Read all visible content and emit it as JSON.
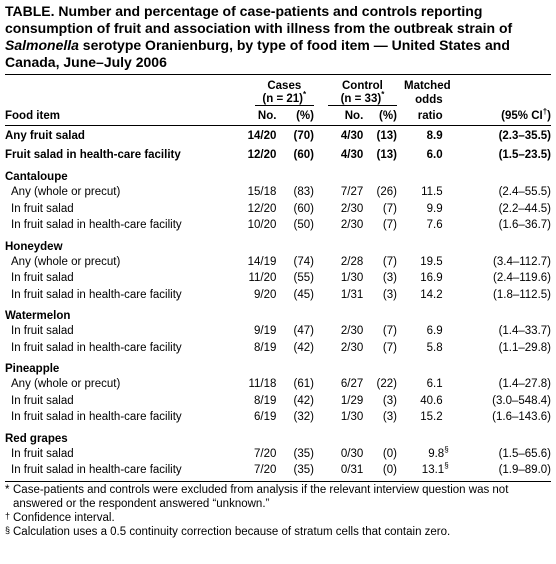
{
  "title": {
    "bold_prefix": "TABLE.",
    "text_1": " Number and percentage of case-patients and controls reporting consumption of fruit and association with illness from the outbreak strain of ",
    "italic": "Salmonella",
    "text_2": " serotype Oranienburg, by type of food item — United States and Canada, June–July 2006"
  },
  "header": {
    "cases_label": "Cases",
    "cases_n": "(n = 21)",
    "cases_mark": "*",
    "control_label": "Control",
    "control_n": "(n = 33)",
    "control_mark": "*",
    "matched_1": "Matched",
    "matched_2": "odds",
    "food_item": "Food item",
    "no_1": "No.",
    "pct_1": "(%)",
    "no_2": "No.",
    "pct_2": "(%)",
    "ratio": "ratio",
    "ci_prefix": "(95% CI",
    "ci_mark": "†",
    "ci_suffix": ")"
  },
  "rows": [
    {
      "kind": "bold",
      "label": "Any fruit salad",
      "cases_no": "14/20",
      "cases_pct": "(70)",
      "ctrl_no": "4/30",
      "ctrl_pct": "(13)",
      "or": "8.9",
      "or_mark": "",
      "ci": "(2.3–35.5)"
    },
    {
      "kind": "bold",
      "label": "Fruit salad in health-care facility",
      "cases_no": "12/20",
      "cases_pct": "(60)",
      "ctrl_no": "4/30",
      "ctrl_pct": "(13)",
      "or": "6.0",
      "or_mark": "",
      "ci": "(1.5–23.5)"
    },
    {
      "kind": "group",
      "label": "Cantaloupe"
    },
    {
      "kind": "item",
      "label": "Any (whole or precut)",
      "cases_no": "15/18",
      "cases_pct": "(83)",
      "ctrl_no": "7/27",
      "ctrl_pct": "(26)",
      "or": "11.5",
      "or_mark": "",
      "ci": "(2.4–55.5)"
    },
    {
      "kind": "item",
      "label": "In fruit salad",
      "cases_no": "12/20",
      "cases_pct": "(60)",
      "ctrl_no": "2/30",
      "ctrl_pct": "(7)",
      "or": "9.9",
      "or_mark": "",
      "ci": "(2.2–44.5)"
    },
    {
      "kind": "item",
      "label": "In fruit salad in health-care facility",
      "cases_no": "10/20",
      "cases_pct": "(50)",
      "ctrl_no": "2/30",
      "ctrl_pct": "(7)",
      "or": "7.6",
      "or_mark": "",
      "ci": "(1.6–36.7)"
    },
    {
      "kind": "group",
      "label": "Honeydew"
    },
    {
      "kind": "item",
      "label": "Any (whole or precut)",
      "cases_no": "14/19",
      "cases_pct": "(74)",
      "ctrl_no": "2/28",
      "ctrl_pct": "(7)",
      "or": "19.5",
      "or_mark": "",
      "ci": "(3.4–112.7)"
    },
    {
      "kind": "item",
      "label": "In fruit salad",
      "cases_no": "11/20",
      "cases_pct": "(55)",
      "ctrl_no": "1/30",
      "ctrl_pct": "(3)",
      "or": "16.9",
      "or_mark": "",
      "ci": "(2.4–119.6)"
    },
    {
      "kind": "item",
      "label": "In fruit salad in health-care facility",
      "cases_no": "9/20",
      "cases_pct": "(45)",
      "ctrl_no": "1/31",
      "ctrl_pct": "(3)",
      "or": "14.2",
      "or_mark": "",
      "ci": "(1.8–112.5)"
    },
    {
      "kind": "group",
      "label": "Watermelon"
    },
    {
      "kind": "item",
      "label": "In fruit salad",
      "cases_no": "9/19",
      "cases_pct": "(47)",
      "ctrl_no": "2/30",
      "ctrl_pct": "(7)",
      "or": "6.9",
      "or_mark": "",
      "ci": "(1.4–33.7)"
    },
    {
      "kind": "item",
      "label": "In fruit salad in health-care facility",
      "cases_no": "8/19",
      "cases_pct": "(42)",
      "ctrl_no": "2/30",
      "ctrl_pct": "(7)",
      "or": "5.8",
      "or_mark": "",
      "ci": "(1.1–29.8)"
    },
    {
      "kind": "group",
      "label": "Pineapple"
    },
    {
      "kind": "item",
      "label": "Any (whole or precut)",
      "cases_no": "11/18",
      "cases_pct": "(61)",
      "ctrl_no": "6/27",
      "ctrl_pct": "(22)",
      "or": "6.1",
      "or_mark": "",
      "ci": "(1.4–27.8)"
    },
    {
      "kind": "item",
      "label": "In fruit salad",
      "cases_no": "8/19",
      "cases_pct": "(42)",
      "ctrl_no": "1/29",
      "ctrl_pct": "(3)",
      "or": "40.6",
      "or_mark": "",
      "ci": "(3.0–548.4)"
    },
    {
      "kind": "item",
      "label": "In fruit salad in health-care facility",
      "cases_no": "6/19",
      "cases_pct": "(32)",
      "ctrl_no": "1/30",
      "ctrl_pct": "(3)",
      "or": "15.2",
      "or_mark": "",
      "ci": "(1.6–143.6)"
    },
    {
      "kind": "group",
      "label": "Red grapes"
    },
    {
      "kind": "item",
      "label": "In fruit salad",
      "cases_no": "7/20",
      "cases_pct": "(35)",
      "ctrl_no": "0/30",
      "ctrl_pct": "(0)",
      "or": "9.8",
      "or_mark": "§",
      "ci": "(1.5–65.6)"
    },
    {
      "kind": "item",
      "label": "In fruit salad in health-care facility",
      "cases_no": "7/20",
      "cases_pct": "(35)",
      "ctrl_no": "0/31",
      "ctrl_pct": "(0)",
      "or": "13.1",
      "or_mark": "§",
      "ci": "(1.9–89.0)"
    }
  ],
  "footnotes": [
    {
      "mark": "*",
      "text": "Case-patients and controls were excluded from analysis if the relevant interview question was not answered or the respondent answered “unknown.”"
    },
    {
      "mark": "†",
      "text": "Confidence interval."
    },
    {
      "mark": "§",
      "text": "Calculation uses a 0.5 continuity correction because of stratum cells that contain zero."
    }
  ]
}
